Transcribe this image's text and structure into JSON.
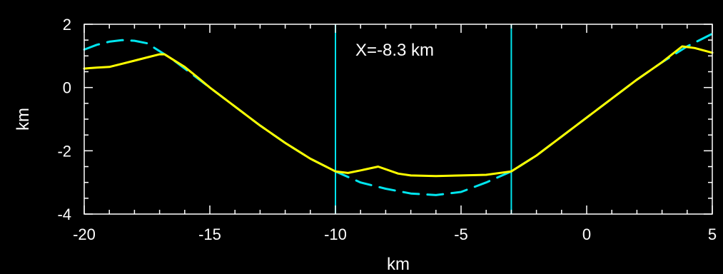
{
  "chart_data": {
    "type": "line",
    "xlabel": "km",
    "ylabel": "km",
    "xlim": [
      -20,
      5
    ],
    "ylim": [
      -4,
      2
    ],
    "xticks": [
      -20,
      -15,
      -10,
      -5,
      0,
      5
    ],
    "yticks": [
      -4,
      -2,
      0,
      2
    ],
    "x_tick_labels": [
      "-20",
      "-15",
      "-10",
      "-5",
      "0",
      "5"
    ],
    "y_tick_labels": [
      "-4",
      "-2",
      "0",
      "2"
    ],
    "annotation": "X=-8.3 km",
    "vertical_lines": [
      -10,
      -3
    ],
    "colors": {
      "background": "#000000",
      "axes": "#ffffff",
      "solid_series": "#ffff00",
      "dashed_series": "#00e5ee",
      "vertical_lines": "#00e5ee"
    },
    "series": [
      {
        "style": "dashed",
        "color": "#00e5ee",
        "points": [
          [
            -20,
            1.2
          ],
          [
            -19.5,
            1.35
          ],
          [
            -19,
            1.45
          ],
          [
            -18.5,
            1.5
          ],
          [
            -18,
            1.48
          ],
          [
            -17.5,
            1.4
          ],
          [
            -17,
            1.15
          ],
          [
            -16.5,
            0.9
          ],
          [
            -16,
            0.6
          ],
          [
            -15.5,
            0.3
          ],
          [
            -15,
            0.0
          ],
          [
            -14,
            -0.6
          ],
          [
            -13,
            -1.2
          ],
          [
            -12,
            -1.75
          ],
          [
            -11,
            -2.25
          ],
          [
            -10,
            -2.65
          ],
          [
            -9,
            -3.0
          ],
          [
            -8,
            -3.2
          ],
          [
            -7,
            -3.35
          ],
          [
            -6,
            -3.4
          ],
          [
            -5,
            -3.3
          ],
          [
            -4,
            -3.0
          ],
          [
            -3,
            -2.65
          ],
          [
            -2,
            -2.15
          ],
          [
            -1,
            -1.55
          ],
          [
            0,
            -0.95
          ],
          [
            1,
            -0.35
          ],
          [
            2,
            0.25
          ],
          [
            3,
            0.8
          ],
          [
            4,
            1.3
          ],
          [
            5,
            1.7
          ]
        ]
      },
      {
        "style": "solid",
        "color": "#ffff00",
        "points": [
          [
            -20,
            0.6
          ],
          [
            -19.5,
            0.63
          ],
          [
            -19,
            0.65
          ],
          [
            -18.5,
            0.75
          ],
          [
            -18,
            0.85
          ],
          [
            -17.5,
            0.95
          ],
          [
            -17,
            1.05
          ],
          [
            -16.8,
            1.05
          ],
          [
            -16.5,
            0.9
          ],
          [
            -16,
            0.65
          ],
          [
            -15.5,
            0.33
          ],
          [
            -15,
            0.0
          ],
          [
            -14,
            -0.6
          ],
          [
            -13,
            -1.2
          ],
          [
            -12,
            -1.75
          ],
          [
            -11,
            -2.25
          ],
          [
            -10,
            -2.65
          ],
          [
            -9.5,
            -2.7
          ],
          [
            -9,
            -2.62
          ],
          [
            -8.3,
            -2.5
          ],
          [
            -7.5,
            -2.72
          ],
          [
            -7,
            -2.78
          ],
          [
            -6,
            -2.8
          ],
          [
            -5,
            -2.78
          ],
          [
            -4,
            -2.76
          ],
          [
            -3,
            -2.65
          ],
          [
            -2,
            -2.15
          ],
          [
            -1,
            -1.55
          ],
          [
            0,
            -0.95
          ],
          [
            1,
            -0.35
          ],
          [
            2,
            0.25
          ],
          [
            3,
            0.8
          ],
          [
            3.8,
            1.3
          ],
          [
            4.3,
            1.25
          ],
          [
            5,
            1.1
          ]
        ]
      }
    ]
  }
}
